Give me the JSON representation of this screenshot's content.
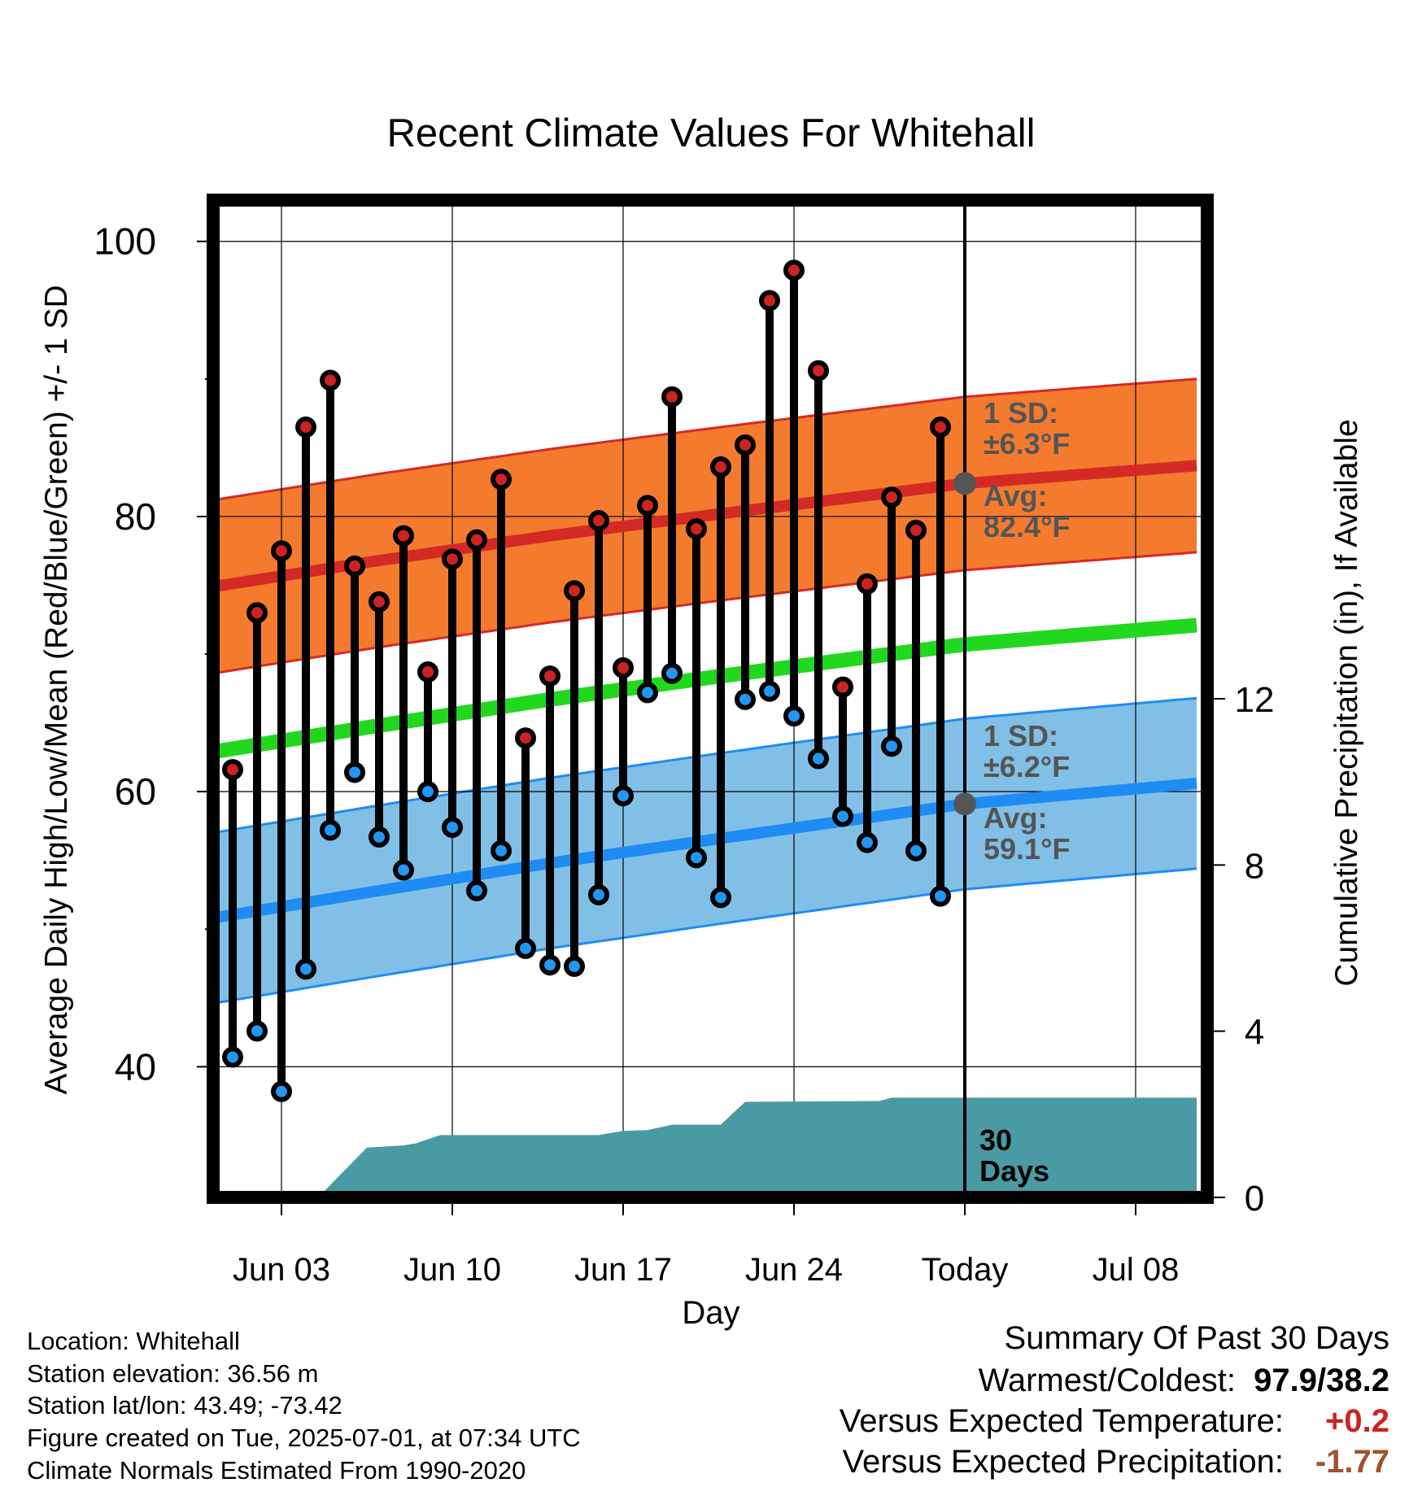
{
  "chart_data": {
    "type": "line",
    "title": "Recent Climate Values For Whitehall",
    "xlabel": "Day",
    "ylabel": "Average Daily High/Low/Mean (Red/Blue/Green) +/- 1 SD",
    "y2label": "Cumulative Precipitation (in), If Available",
    "x_tick_labels": [
      "Jun 03",
      "Jun 10",
      "Jun 17",
      "Jun 24",
      "Today",
      "Jul 08"
    ],
    "y_ticks": [
      40,
      60,
      80,
      100
    ],
    "y2_ticks": [
      0,
      4,
      8,
      12
    ],
    "ylim": [
      30.5,
      103
    ],
    "y2lim": [
      0,
      24
    ],
    "xlim_days": [
      -31.5,
      9.5
    ],
    "grid": true,
    "days": [
      -30,
      -29,
      -28,
      -27,
      -26,
      -25,
      -24,
      -23,
      -22,
      -21,
      -20,
      -19,
      -18,
      -17,
      -16,
      -15,
      -14,
      -13,
      -12,
      -11,
      -10,
      -9,
      -8,
      -7,
      -6,
      -5,
      -4,
      -3,
      -2,
      -1
    ],
    "highs": [
      61.6,
      73.0,
      77.5,
      86.5,
      89.9,
      76.4,
      73.8,
      78.6,
      68.7,
      76.9,
      78.3,
      82.7,
      63.9,
      68.4,
      74.6,
      79.7,
      69.0,
      80.8,
      88.7,
      79.1,
      83.6,
      85.2,
      95.7,
      97.9,
      90.6,
      67.6,
      75.1,
      81.4,
      79.0,
      86.5
    ],
    "lows": [
      40.7,
      42.6,
      38.2,
      47.1,
      57.2,
      61.4,
      56.7,
      54.3,
      60.0,
      57.4,
      52.8,
      55.7,
      48.6,
      47.4,
      47.3,
      52.5,
      59.7,
      67.2,
      68.6,
      55.2,
      52.3,
      66.7,
      67.3,
      65.5,
      62.4,
      58.2,
      56.3,
      63.3,
      55.7,
      52.4
    ],
    "normals": [
      {
        "day": -31.5,
        "high": 74.7,
        "low": 50.6,
        "mean": 62.7,
        "high_sd": 6.3,
        "low_sd": 6.2
      },
      {
        "day": -24,
        "high": 76.8,
        "low": 52.8,
        "mean": 64.8
      },
      {
        "day": -17,
        "high": 78.6,
        "low": 54.8,
        "mean": 66.7
      },
      {
        "day": -10,
        "high": 80.2,
        "low": 56.6,
        "mean": 68.4
      },
      {
        "day": 0,
        "high": 82.4,
        "low": 59.1,
        "mean": 70.7
      },
      {
        "day": 9.5,
        "high": 83.7,
        "low": 60.6,
        "mean": 72.1
      }
    ],
    "precip_cumulative": [
      {
        "day": -26.5,
        "value": 0.0
      },
      {
        "day": -24.5,
        "value": 1.2
      },
      {
        "day": -23,
        "value": 1.25
      },
      {
        "day": -22.5,
        "value": 1.3
      },
      {
        "day": -21.5,
        "value": 1.5
      },
      {
        "day": -15,
        "value": 1.5
      },
      {
        "day": -14,
        "value": 1.6
      },
      {
        "day": -13,
        "value": 1.62
      },
      {
        "day": -12,
        "value": 1.75
      },
      {
        "day": -10,
        "value": 1.75
      },
      {
        "day": -9,
        "value": 2.3
      },
      {
        "day": -3.5,
        "value": 2.32
      },
      {
        "day": -3,
        "value": 2.4
      },
      {
        "day": 9.5,
        "value": 2.4
      }
    ],
    "annotations": {
      "high_sd": "1 SD:\n±6.3°F",
      "high_avg": "Avg:\n82.4°F",
      "low_sd": "1 SD:\n±6.2°F",
      "low_avg": "Avg:\n59.1°F",
      "days": "30\nDays"
    }
  },
  "colors": {
    "high_band": "#f47b2e",
    "high_line": "#d42a26",
    "low_band": "#82bfe6",
    "low_line": "#1e8cf2",
    "mean_line": "#22d81e",
    "precip": "#4a9aa3",
    "high_dot": "#cc2222",
    "low_dot": "#2196f3",
    "annotation": "#555555",
    "warm": "#cc2222",
    "dry": "#a0522d"
  },
  "info": {
    "location": "Location: Whitehall",
    "elevation": "Station elevation: 36.56 m",
    "latlon": "Station lat/lon: 43.49; -73.42",
    "created": "Figure created on Tue, 2025-07-01, at 07:34 UTC",
    "normals": "Climate Normals Estimated From 1990-2020"
  },
  "summary": {
    "title": "Summary Of Past 30 Days",
    "warmest_label": "Warmest/Coldest:",
    "warmest_value": "97.9/38.2",
    "temp_label": "Versus Expected Temperature:",
    "temp_value": "+0.2",
    "precip_label": "Versus Expected Precipitation:",
    "precip_value": "-1.77"
  }
}
